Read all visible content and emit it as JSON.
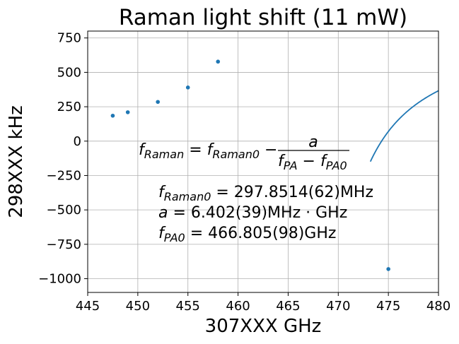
{
  "chart_data": {
    "type": "scatter",
    "title": "Raman light shift (11 mW)",
    "xlabel": "307XXX GHz",
    "ylabel": "298XXX kHz",
    "xlim": [
      445,
      480
    ],
    "ylim": [
      -1100,
      800
    ],
    "grid": true,
    "x_ticks": [
      445,
      450,
      455,
      460,
      465,
      470,
      475,
      480
    ],
    "y_ticks": [
      750,
      500,
      250,
      0,
      -250,
      -500,
      -750,
      -1000
    ],
    "x_tick_labels": [
      "445",
      "450",
      "455",
      "460",
      "465",
      "470",
      "475",
      "480"
    ],
    "y_tick_labels": [
      "750",
      "500",
      "250",
      "0",
      "−250",
      "−500",
      "−750",
      "−1000"
    ],
    "color": "#1f77b4",
    "points": {
      "x": [
        447.5,
        449.0,
        452.0,
        455.0,
        458.0,
        475.0
      ],
      "y": [
        185,
        210,
        285,
        390,
        578,
        -930
      ]
    },
    "fit": {
      "f_raman0_khz": 851.4,
      "a_mhz_ghz": 6.402,
      "f_pa0_ghz": 466.805
    },
    "annotations": {
      "formula": {
        "lhs_f": "f",
        "lhs_sub": "Raman",
        "eq": " = ",
        "rhs_f": "f",
        "rhs_sub": "Raman0",
        "minus": " − ",
        "numerator": "a",
        "den_f1": "f",
        "den_sub1": "PA",
        "den_minus": " − ",
        "den_f2": "f",
        "den_sub2": "PA0"
      },
      "line1": {
        "f": "f",
        "sub": "Raman0",
        "rest": " = 297.8514(62)MHz"
      },
      "line2": {
        "a": "a",
        "rest": " = 6.402(39)MHz · GHz"
      },
      "line3": {
        "f": "f",
        "sub": "PA0",
        "rest": " = 466.805(98)GHz"
      }
    }
  }
}
